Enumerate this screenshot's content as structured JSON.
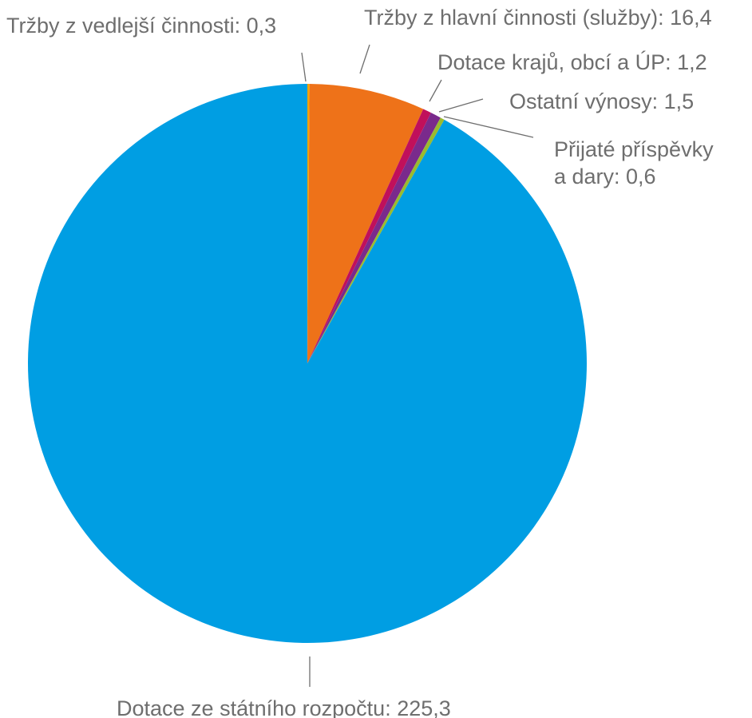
{
  "chart_data": {
    "type": "pie",
    "title": "",
    "slices": [
      {
        "label": "Tržby z vedlejší činnosti: 0,3",
        "value": 0.3,
        "color": "#f2a300"
      },
      {
        "label": "Tržby z hlavní činnosti (služby): 16,4",
        "value": 16.4,
        "color": "#ee7219"
      },
      {
        "label": "Dotace krajů, obcí a ÚP: 1,2",
        "value": 1.2,
        "color": "#c0105b"
      },
      {
        "label": "Ostatní výnosy: 1,5",
        "value": 1.5,
        "color": "#7a2a8c"
      },
      {
        "label_lines": [
          "Přijaté příspěvky",
          "a dary: 0,6"
        ],
        "value": 0.6,
        "color": "#9bbb2e"
      },
      {
        "label": "Dotace ze státního rozpočtu: 225,3",
        "value": 225.3,
        "color": "#009ee3"
      }
    ]
  }
}
